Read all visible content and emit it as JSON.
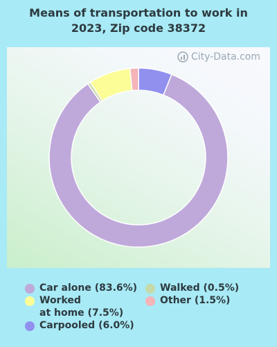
{
  "chart_data": {
    "type": "pie",
    "variant": "donut",
    "title_line1": "Means of transportation to work in",
    "title_line2": "2023, Zip code 38372",
    "watermark": "City-Data.com",
    "slices": [
      {
        "label": "Car alone (83.6%)",
        "value": 83.6,
        "color": "#bfa9da"
      },
      {
        "label": "Walked (0.5%)",
        "value": 0.5,
        "color": "#c6d9a8"
      },
      {
        "label": "Worked\nat home (7.5%)",
        "value": 7.5,
        "color": "#fdfd98"
      },
      {
        "label": "Other (1.5%)",
        "value": 1.5,
        "color": "#f4b4b8"
      },
      {
        "label": "Carpooled (6.0%)",
        "value": 6.0,
        "color": "#9190ef"
      }
    ],
    "slice_order_clockwise_from_top": [
      "Carpooled (6.0%)",
      "Car alone (83.6%)",
      "Walked (0.5%)",
      "Worked\nat home (7.5%)",
      "Other (1.5%)"
    ]
  }
}
